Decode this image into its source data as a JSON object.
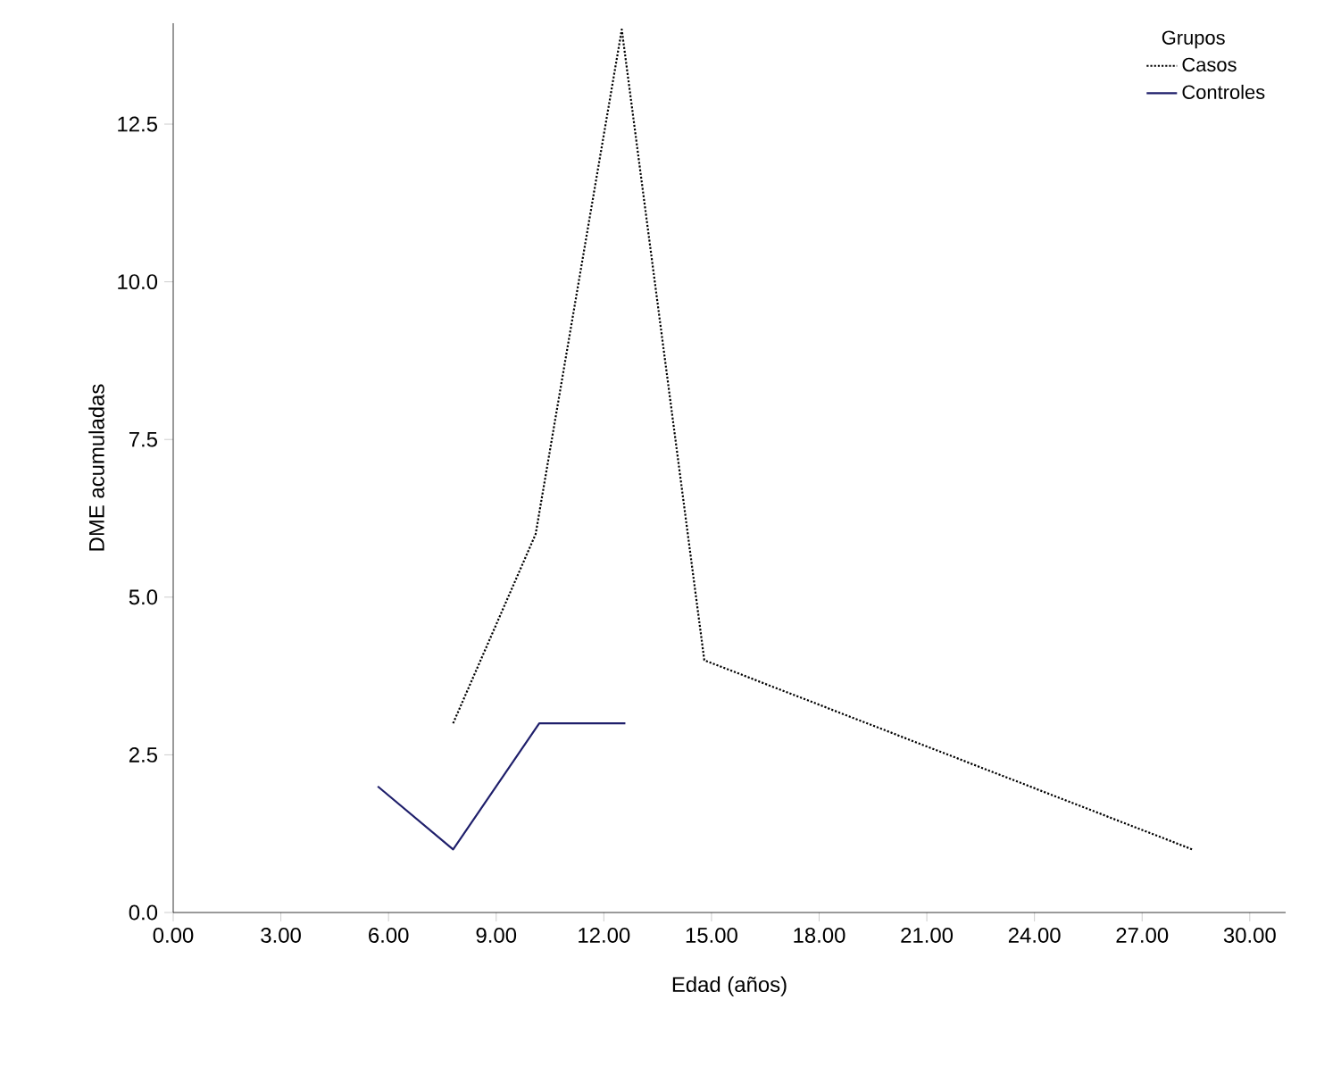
{
  "chart_data": {
    "type": "line",
    "xlabel": "Edad (años)",
    "ylabel": "DME acumuladas",
    "legend_title": "Grupos",
    "legend": "top right",
    "grid": false,
    "marker": "none",
    "xlim": [
      0,
      31
    ],
    "ylim": [
      0,
      14.1
    ],
    "xticks": [
      {
        "value": 0,
        "label": "0.00"
      },
      {
        "value": 3,
        "label": "3.00"
      },
      {
        "value": 6,
        "label": "6.00"
      },
      {
        "value": 9,
        "label": "9.00"
      },
      {
        "value": 12,
        "label": "12.00"
      },
      {
        "value": 15,
        "label": "15.00"
      },
      {
        "value": 18,
        "label": "18.00"
      },
      {
        "value": 21,
        "label": "21.00"
      },
      {
        "value": 24,
        "label": "24.00"
      },
      {
        "value": 27,
        "label": "27.00"
      },
      {
        "value": 30,
        "label": "30.00"
      }
    ],
    "yticks": [
      {
        "value": 0,
        "label": "0.0"
      },
      {
        "value": 2.5,
        "label": "2.5"
      },
      {
        "value": 5,
        "label": "5.0"
      },
      {
        "value": 7.5,
        "label": "7.5"
      },
      {
        "value": 10,
        "label": "10.0"
      },
      {
        "value": 12.5,
        "label": "12.5"
      }
    ],
    "series": [
      {
        "name": "Casos",
        "color": "#000000",
        "line_style": "dotted",
        "x": [
          7.8,
          10.1,
          12.5,
          14.8,
          28.4
        ],
        "values": [
          3,
          6,
          14,
          4,
          1
        ]
      },
      {
        "name": "Controles",
        "color": "#1f1f6b",
        "line_style": "solid",
        "x": [
          5.7,
          7.8,
          10.2,
          12.6
        ],
        "values": [
          2,
          1,
          3,
          3
        ]
      }
    ]
  }
}
